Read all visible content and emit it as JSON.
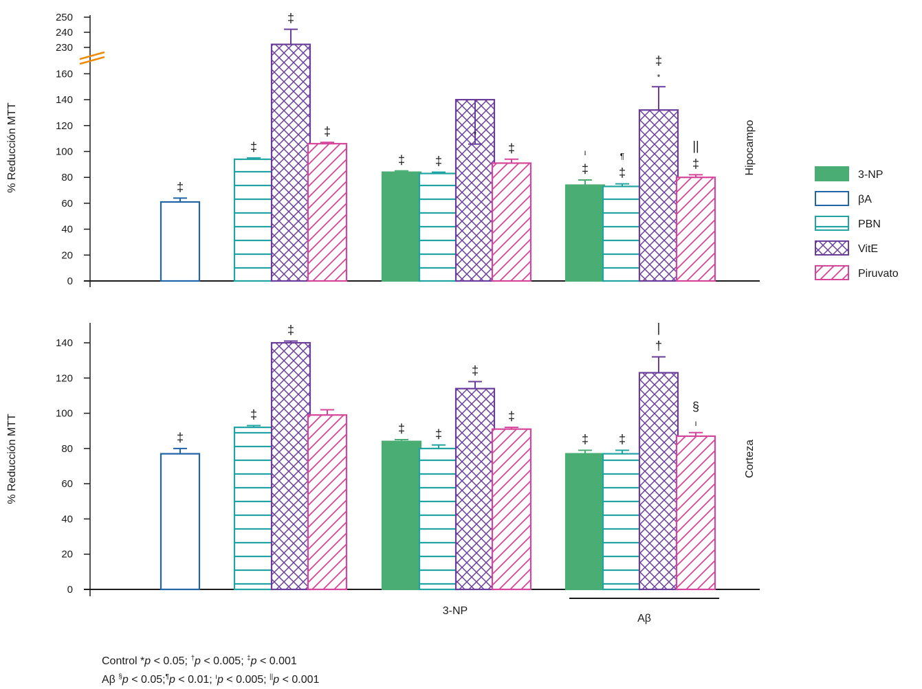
{
  "chart_data": [
    {
      "type": "bar",
      "panel": "Hipocampo",
      "ylabel": "% Reducción MTT",
      "axis_break": true,
      "yticks_low": [
        "0",
        "20",
        "40",
        "60",
        "80",
        "100",
        "120",
        "140",
        "160"
      ],
      "yticks_high": [
        "230",
        "240",
        "250"
      ],
      "groups": [
        {
          "label": "",
          "bars": [
            {
              "series": "βA",
              "value": 61,
              "err": 3,
              "sig": [
                "‡"
              ]
            }
          ]
        },
        {
          "label": "",
          "bars": [
            {
              "series": "PBN",
              "value": 94,
              "err": 1,
              "sig": [
                "‡"
              ]
            },
            {
              "series": "VitE",
              "value": 232,
              "err": 10,
              "sig": [
                "‡"
              ]
            },
            {
              "series": "Piruvato",
              "value": 106,
              "err": 1,
              "sig": [
                "‡"
              ]
            }
          ]
        },
        {
          "label": "3-NP",
          "bars": [
            {
              "series": "3-NP",
              "value": 84,
              "err": 1,
              "sig": [
                "‡"
              ]
            },
            {
              "series": "PBN",
              "value": 83,
              "err": 1,
              "sig": [
                "‡"
              ]
            },
            {
              "series": "VitE",
              "value": 140,
              "err": 26,
              "sig": [
                "*"
              ]
            },
            {
              "series": "Piruvato",
              "value": 91,
              "err": 3,
              "sig": [
                "‡"
              ]
            }
          ]
        },
        {
          "label": "Aβ",
          "bars": [
            {
              "series": "3-NP",
              "value": 74,
              "err": 4,
              "sig": [
                "‡",
                "ı"
              ]
            },
            {
              "series": "PBN",
              "value": 73,
              "err": 2,
              "sig": [
                "‡",
                "¶"
              ]
            },
            {
              "series": "VitE",
              "value": 132,
              "err": 18,
              "sig": [
                "*",
                "‡"
              ]
            },
            {
              "series": "Piruvato",
              "value": 80,
              "err": 2,
              "sig": [
                "‡",
                "||"
              ]
            }
          ]
        }
      ]
    },
    {
      "type": "bar",
      "panel": "Corteza",
      "ylabel": "% Reducción MTT",
      "ylim": [
        0,
        150
      ],
      "yticks": [
        "0",
        "20",
        "40",
        "60",
        "80",
        "100",
        "120",
        "140"
      ],
      "groups": [
        {
          "label": "",
          "bars": [
            {
              "series": "βA",
              "value": 77,
              "err": 3,
              "sig": [
                "‡"
              ]
            }
          ]
        },
        {
          "label": "",
          "bars": [
            {
              "series": "PBN",
              "value": 92,
              "err": 1,
              "sig": [
                "‡"
              ]
            },
            {
              "series": "VitE",
              "value": 140,
              "err": 1,
              "sig": [
                "‡"
              ]
            },
            {
              "series": "Piruvato",
              "value": 99,
              "err": 3,
              "sig": []
            }
          ]
        },
        {
          "label": "3-NP",
          "bars": [
            {
              "series": "3-NP",
              "value": 84,
              "err": 1,
              "sig": [
                "‡"
              ]
            },
            {
              "series": "PBN",
              "value": 80,
              "err": 2,
              "sig": [
                "‡"
              ]
            },
            {
              "series": "VitE",
              "value": 114,
              "err": 4,
              "sig": [
                "‡"
              ]
            },
            {
              "series": "Piruvato",
              "value": 91,
              "err": 1,
              "sig": [
                "‡"
              ]
            }
          ]
        },
        {
          "label": "Aβ",
          "bars": [
            {
              "series": "3-NP",
              "value": 77,
              "err": 2,
              "sig": [
                "‡"
              ]
            },
            {
              "series": "PBN",
              "value": 77,
              "err": 2,
              "sig": [
                "‡"
              ]
            },
            {
              "series": "VitE",
              "value": 123,
              "err": 9,
              "sig": [
                "†",
                "|"
              ]
            },
            {
              "series": "Piruvato",
              "value": 87,
              "err": 2,
              "sig": [
                "ı",
                "§"
              ]
            }
          ]
        }
      ]
    }
  ],
  "legend": [
    {
      "series": "3-NP",
      "label": "3-NP",
      "color": "#4aae74",
      "pattern": "solid"
    },
    {
      "series": "βA",
      "label": "βA",
      "color": "#1f63a8",
      "pattern": "empty"
    },
    {
      "series": "PBN",
      "label": "PBN",
      "color": "#20a3a3",
      "pattern": "horizontal"
    },
    {
      "series": "VitE",
      "label": "VitE",
      "color": "#6a3d9a",
      "pattern": "crosshatch"
    },
    {
      "series": "Piruvato",
      "label": "Piruvato",
      "color": "#d6459a",
      "pattern": "diagonal"
    }
  ],
  "break_color": "#f08a00",
  "footnotes": {
    "control": {
      "prefix": "Control ",
      "marks": [
        "*",
        "†",
        "‡"
      ],
      "thresholds": [
        "0.05",
        "0.005",
        "0.001"
      ]
    },
    "abeta": {
      "prefix": "Aβ ",
      "marks": [
        "§",
        "¶",
        "ı",
        "||"
      ],
      "thresholds": [
        "0.05",
        "0.01",
        "0.005",
        "0.001"
      ]
    }
  }
}
